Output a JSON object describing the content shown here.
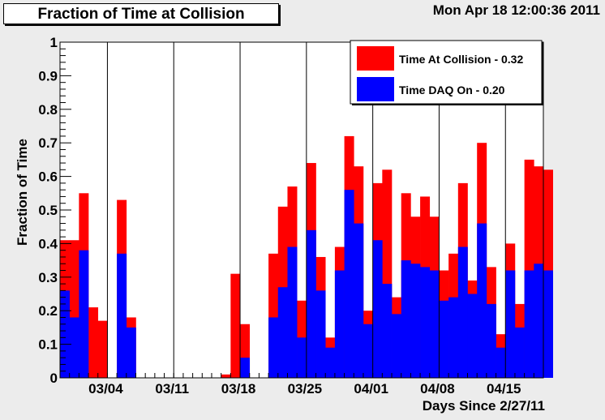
{
  "header": {
    "title": "Fraction of Time at Collision",
    "datestamp": "Mon Apr 18 12:00:36 2011"
  },
  "chart_data": {
    "type": "bar",
    "style": "overlaid histogram",
    "ylabel": "Fraction of Time",
    "xlabel": "Days Since 2/27/11",
    "ylim": [
      0,
      1
    ],
    "y_ticks": [
      "0",
      "0.1",
      "0.2",
      "0.3",
      "0.4",
      "0.5",
      "0.6",
      "0.7",
      "0.8",
      "0.9",
      "1"
    ],
    "x_tick_labels": [
      "03/04",
      "03/11",
      "03/18",
      "03/25",
      "04/01",
      "04/08",
      "04/15"
    ],
    "x_tick_days": [
      5,
      12,
      19,
      26,
      33,
      40,
      47
    ],
    "x_range_days": [
      0,
      51
    ],
    "legend": {
      "placement": "top-right"
    },
    "series": [
      {
        "name": "Time At Collision - 0.32",
        "color": "#ff0000",
        "values": [
          0.41,
          0.41,
          0.55,
          0.21,
          0.17,
          0,
          0.53,
          0.18,
          0,
          0,
          0,
          0,
          0,
          0,
          0,
          0,
          0,
          0.01,
          0.31,
          0.16,
          0,
          0,
          0.37,
          0.51,
          0.57,
          0.23,
          0.64,
          0.36,
          0.12,
          0.39,
          0.72,
          0.63,
          0.2,
          0.58,
          0.62,
          0.24,
          0.55,
          0.48,
          0.54,
          0.48,
          0.32,
          0.37,
          0.58,
          0.29,
          0.7,
          0.33,
          0.13,
          0.4,
          0.22,
          0.65,
          0.63,
          0.62
        ]
      },
      {
        "name": "Time DAQ On - 0.20",
        "color": "#0000ff",
        "values": [
          0.26,
          0.18,
          0.38,
          0,
          0,
          0,
          0.37,
          0.15,
          0,
          0,
          0,
          0,
          0,
          0,
          0,
          0,
          0,
          0,
          0,
          0.06,
          0,
          0,
          0.18,
          0.27,
          0.39,
          0.12,
          0.44,
          0.26,
          0.09,
          0.32,
          0.56,
          0.46,
          0.16,
          0.41,
          0.28,
          0.19,
          0.35,
          0.34,
          0.33,
          0.32,
          0.23,
          0.24,
          0.39,
          0.25,
          0.46,
          0.22,
          0.09,
          0.32,
          0.15,
          0.32,
          0.34,
          0.32
        ]
      }
    ]
  }
}
